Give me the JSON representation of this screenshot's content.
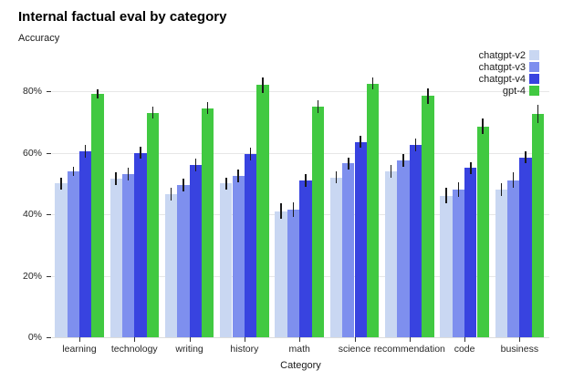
{
  "title": "Internal factual eval by category",
  "subtitle": "Accuracy",
  "chart_data": {
    "type": "bar",
    "title": "Internal factual eval by category",
    "ylabel": "Accuracy",
    "xlabel": "Category",
    "categories": [
      "learning",
      "technology",
      "writing",
      "history",
      "math",
      "science",
      "recommendation",
      "code",
      "business"
    ],
    "series": [
      {
        "name": "chatgpt-v2",
        "color": "#c9d7f2",
        "values": [
          50,
          51.5,
          46.5,
          50,
          41,
          52,
          54,
          46,
          48
        ],
        "errors": [
          2,
          2,
          2,
          2,
          2.5,
          2,
          2,
          2.5,
          2
        ]
      },
      {
        "name": "chatgpt-v3",
        "color": "#7e8fee",
        "values": [
          54,
          53,
          49.5,
          52.5,
          41.5,
          56.5,
          57.5,
          48,
          51
        ],
        "errors": [
          1.5,
          2,
          2,
          2,
          2.5,
          2,
          2,
          2.5,
          2.5
        ]
      },
      {
        "name": "chatgpt-v4",
        "color": "#3843e0",
        "values": [
          60.5,
          60,
          56,
          59.5,
          51,
          63.5,
          62.5,
          55,
          58.5
        ],
        "errors": [
          2,
          2,
          2,
          2,
          2,
          2,
          2,
          2,
          2
        ]
      },
      {
        "name": "gpt-4",
        "color": "#41c941",
        "values": [
          79,
          73,
          74.5,
          82,
          75,
          82.5,
          78.5,
          68.5,
          72.5
        ],
        "errors": [
          1.5,
          2,
          2,
          2.5,
          2,
          2,
          2.5,
          2.5,
          3
        ]
      }
    ],
    "y_ticks": [
      "0%",
      "20%",
      "40%",
      "60%",
      "80%"
    ],
    "y_tick_values": [
      0,
      20,
      40,
      60,
      80
    ],
    "ylim": [
      0,
      100
    ],
    "grid": true,
    "error_bars": true,
    "legend_position": "top-right"
  }
}
